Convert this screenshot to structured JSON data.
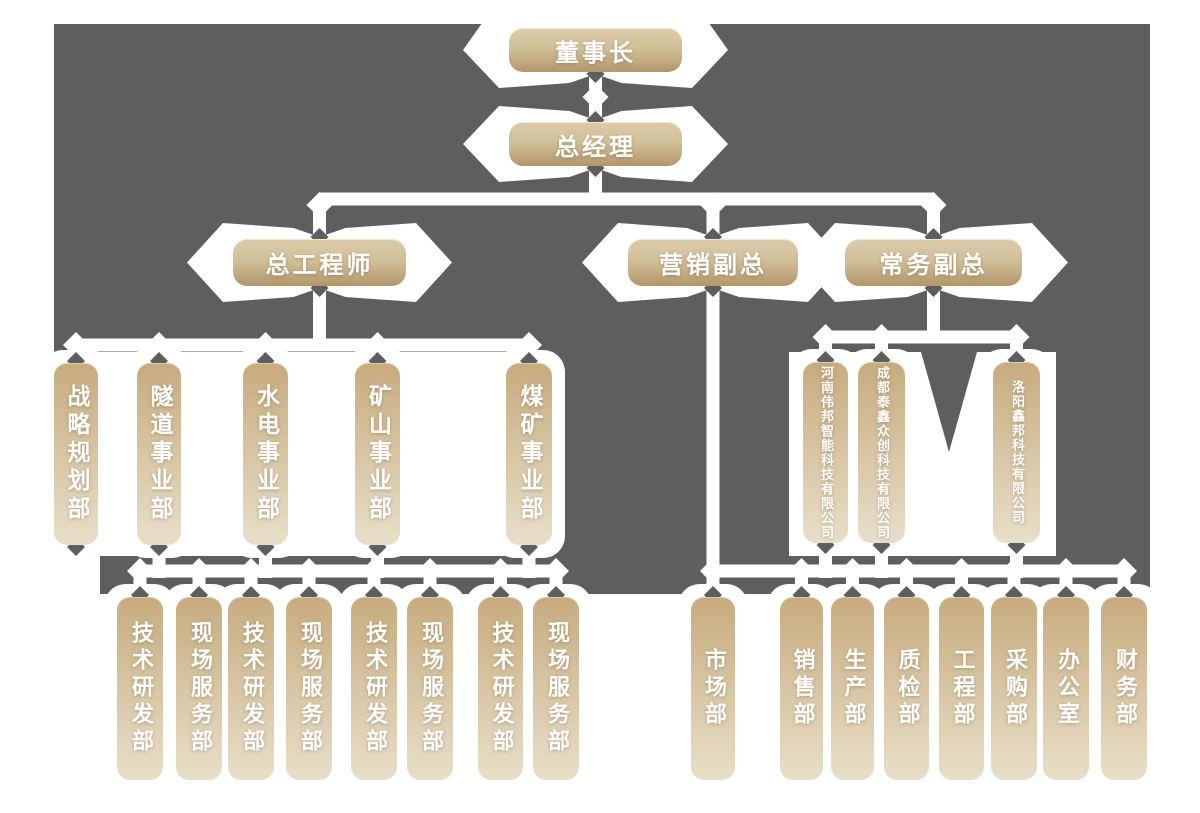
{
  "org": {
    "chairman": {
      "label": "董事长"
    },
    "general_manager": {
      "label": "总经理"
    },
    "executives": [
      {
        "label": "总工程师"
      },
      {
        "label": "营销副总"
      },
      {
        "label": "常务副总"
      }
    ],
    "divisions": [
      "战略规划部",
      "隧道事业部",
      "水电事业部",
      "矿山事业部",
      "煤矿事业部"
    ],
    "subsidiaries": [
      "河南伟邦智能科技有限公司",
      "成都泰鑫众创科技有限公司",
      "洛阳鑫邦科技有限公司"
    ],
    "division_departments": [
      "技术研发部",
      "现场服务部",
      "技术研发部",
      "现场服务部",
      "技术研发部",
      "现场服务部",
      "技术研发部",
      "现场服务部"
    ],
    "vp_departments": [
      "市场部",
      "销售部",
      "生产部",
      "质检部",
      "工程部",
      "采购部",
      "办公室",
      "财务部"
    ]
  },
  "colors": {
    "background_gray": "#5e5e5e",
    "connector_white": "#ffffff",
    "hbox_gradient_top": "#dccbaa",
    "hbox_gradient_bottom": "#b3966a",
    "vbox_gradient_top": "#c7ab7e",
    "vbox_gradient_bottom": "#e8dfc9",
    "text": "#ffffff"
  }
}
